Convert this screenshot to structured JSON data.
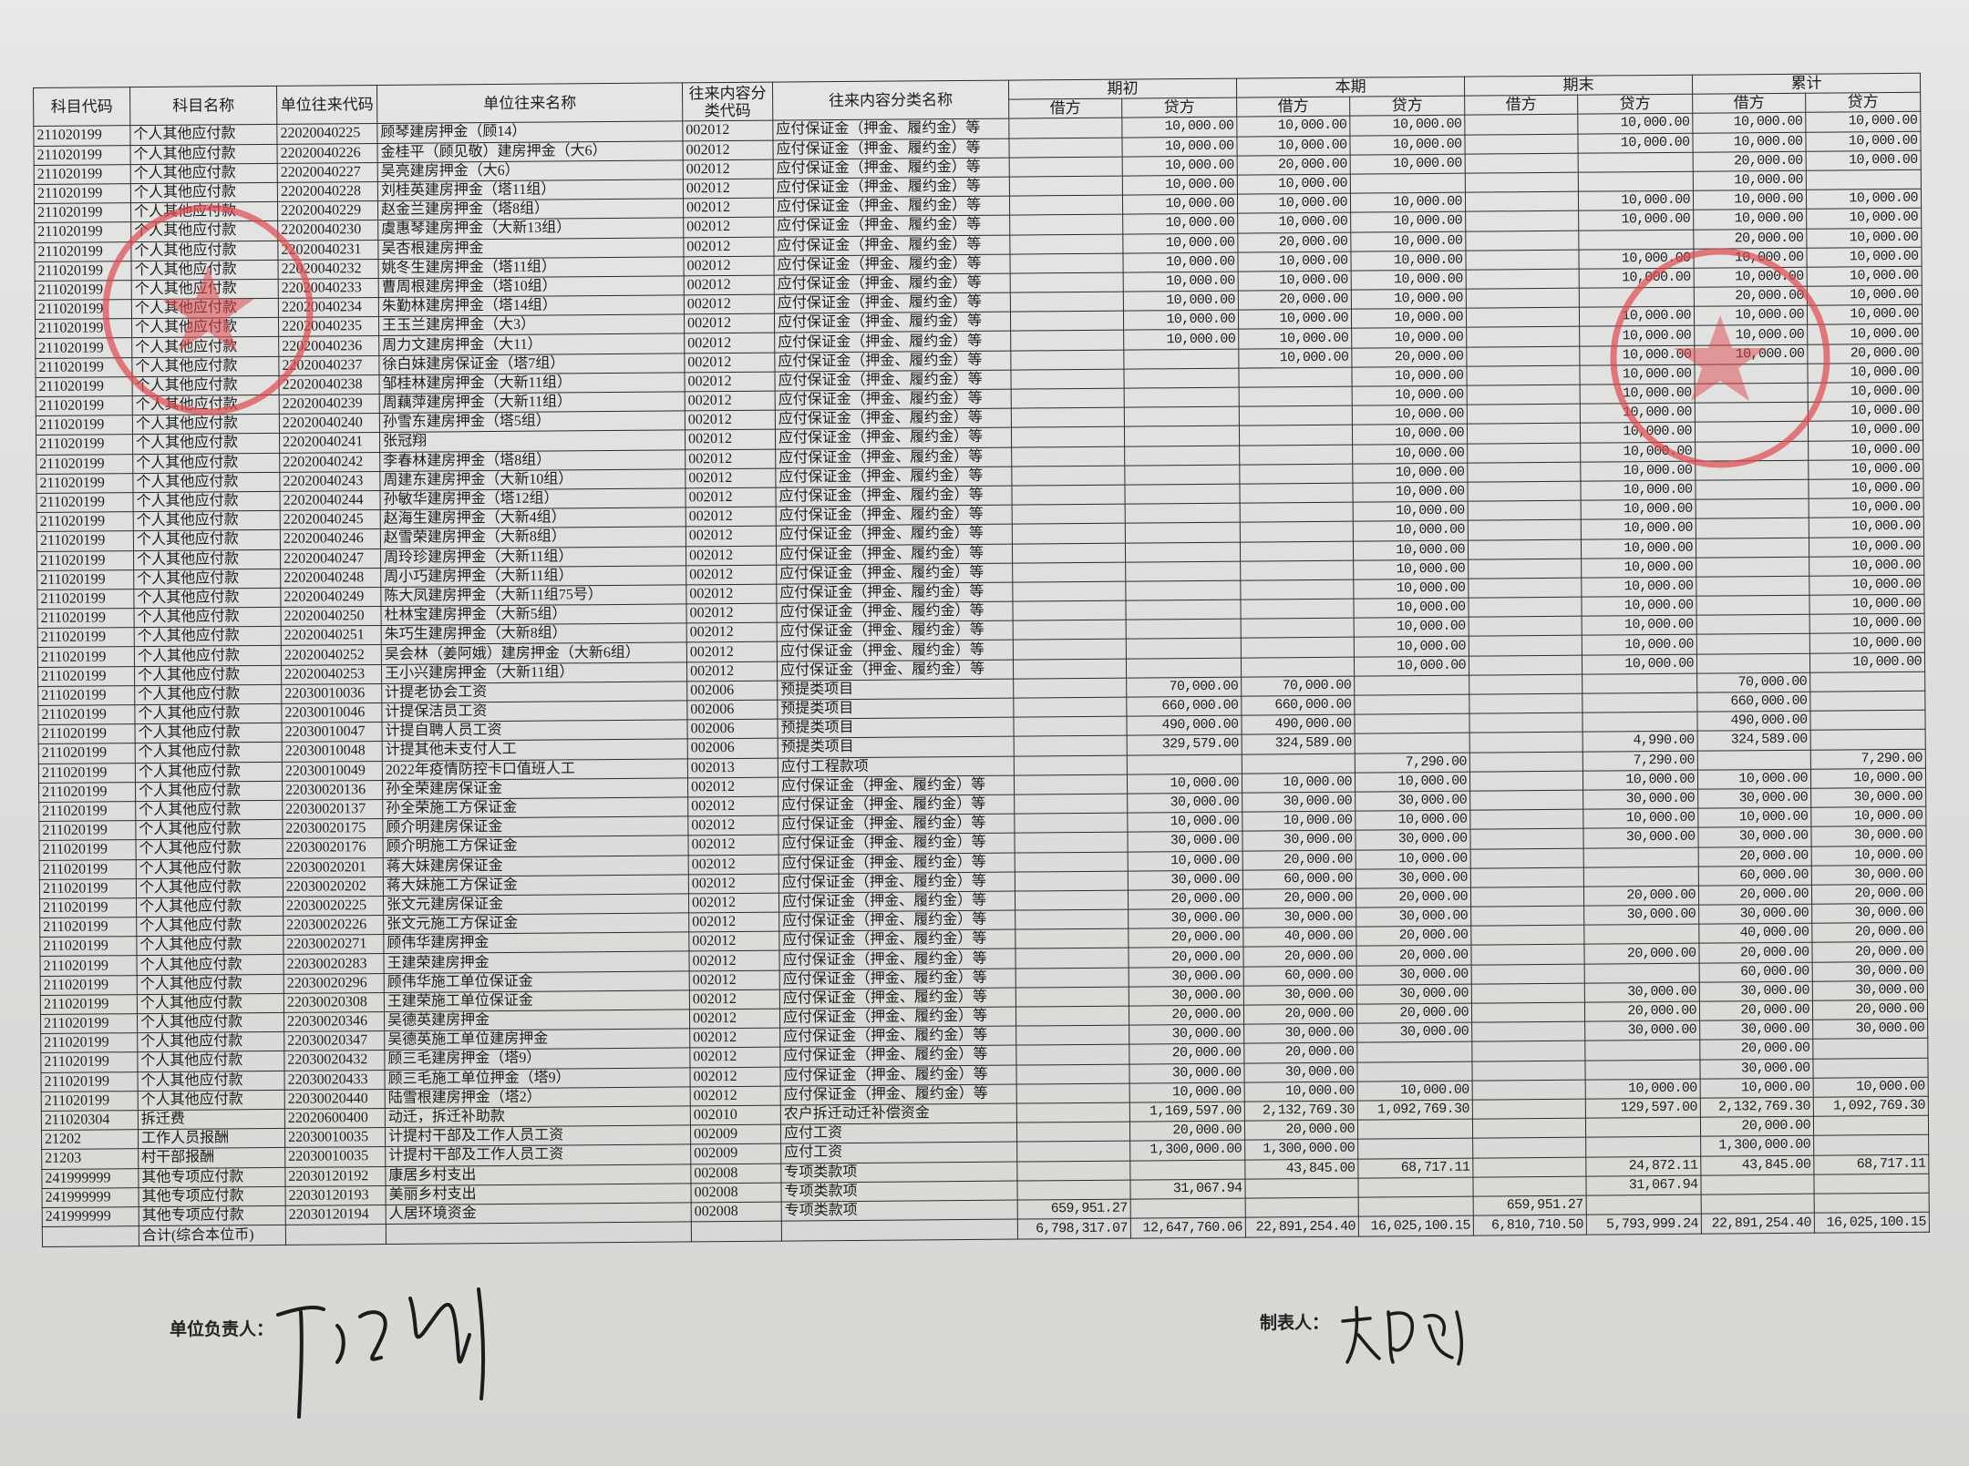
{
  "table": {
    "headers": {
      "subject_code": "科目代码",
      "subject_name": "科目名称",
      "unit_code": "单位往来代码",
      "unit_name": "单位往来名称",
      "category_code": "往来内容分类代码",
      "category_name": "往来内容分类名称",
      "groups": [
        "期初",
        "本期",
        "期末",
        "累计"
      ],
      "debit": "借方",
      "credit": "贷方"
    },
    "rows": [
      [
        "211020199",
        "个人其他应付款",
        "22020040225",
        "顾琴建房押金（顾14）",
        "002012",
        "应付保证金（押金、履约金）等",
        "",
        "10,000.00",
        "10,000.00",
        "10,000.00",
        "",
        "10,000.00",
        "10,000.00",
        "10,000.00"
      ],
      [
        "211020199",
        "个人其他应付款",
        "22020040226",
        "金桂平（顾见敬）建房押金（大6）",
        "002012",
        "应付保证金（押金、履约金）等",
        "",
        "10,000.00",
        "10,000.00",
        "10,000.00",
        "",
        "10,000.00",
        "10,000.00",
        "10,000.00"
      ],
      [
        "211020199",
        "个人其他应付款",
        "22020040227",
        "吴亮建房押金（大6）",
        "002012",
        "应付保证金（押金、履约金）等",
        "",
        "10,000.00",
        "20,000.00",
        "10,000.00",
        "",
        "",
        "20,000.00",
        "10,000.00"
      ],
      [
        "211020199",
        "个人其他应付款",
        "22020040228",
        "刘桂英建房押金（塔11组）",
        "002012",
        "应付保证金（押金、履约金）等",
        "",
        "10,000.00",
        "10,000.00",
        "",
        "",
        "",
        "10,000.00",
        ""
      ],
      [
        "211020199",
        "个人其他应付款",
        "22020040229",
        "赵金兰建房押金（塔8组）",
        "002012",
        "应付保证金（押金、履约金）等",
        "",
        "10,000.00",
        "10,000.00",
        "10,000.00",
        "",
        "10,000.00",
        "10,000.00",
        "10,000.00"
      ],
      [
        "211020199",
        "个人其他应付款",
        "22020040230",
        "虞惠琴建房押金（大新13组）",
        "002012",
        "应付保证金（押金、履约金）等",
        "",
        "10,000.00",
        "10,000.00",
        "10,000.00",
        "",
        "10,000.00",
        "10,000.00",
        "10,000.00"
      ],
      [
        "211020199",
        "个人其他应付款",
        "22020040231",
        "吴杏根建房押金",
        "002012",
        "应付保证金（押金、履约金）等",
        "",
        "10,000.00",
        "20,000.00",
        "10,000.00",
        "",
        "",
        "20,000.00",
        "10,000.00"
      ],
      [
        "211020199",
        "个人其他应付款",
        "22020040232",
        "姚冬生建房押金（塔11组）",
        "002012",
        "应付保证金（押金、履约金）等",
        "",
        "10,000.00",
        "10,000.00",
        "10,000.00",
        "",
        "10,000.00",
        "10,000.00",
        "10,000.00"
      ],
      [
        "211020199",
        "个人其他应付款",
        "22020040233",
        "曹周根建房押金（塔10组）",
        "002012",
        "应付保证金（押金、履约金）等",
        "",
        "10,000.00",
        "10,000.00",
        "10,000.00",
        "",
        "10,000.00",
        "10,000.00",
        "10,000.00"
      ],
      [
        "211020199",
        "个人其他应付款",
        "22020040234",
        "朱勤林建房押金（塔14组）",
        "002012",
        "应付保证金（押金、履约金）等",
        "",
        "10,000.00",
        "20,000.00",
        "10,000.00",
        "",
        "",
        "20,000.00",
        "10,000.00"
      ],
      [
        "211020199",
        "个人其他应付款",
        "22020040235",
        "王玉兰建房押金（大3）",
        "002012",
        "应付保证金（押金、履约金）等",
        "",
        "10,000.00",
        "10,000.00",
        "10,000.00",
        "",
        "10,000.00",
        "10,000.00",
        "10,000.00"
      ],
      [
        "211020199",
        "个人其他应付款",
        "22020040236",
        "周力文建房押金（大11）",
        "002012",
        "应付保证金（押金、履约金）等",
        "",
        "10,000.00",
        "10,000.00",
        "10,000.00",
        "",
        "10,000.00",
        "10,000.00",
        "10,000.00"
      ],
      [
        "211020199",
        "个人其他应付款",
        "22020040237",
        "徐白妹建房保证金（塔7组）",
        "002012",
        "应付保证金（押金、履约金）等",
        "",
        "",
        "10,000.00",
        "20,000.00",
        "",
        "10,000.00",
        "10,000.00",
        "20,000.00"
      ],
      [
        "211020199",
        "个人其他应付款",
        "22020040238",
        "邹桂林建房押金（大新11组）",
        "002012",
        "应付保证金（押金、履约金）等",
        "",
        "",
        "",
        "10,000.00",
        "",
        "10,000.00",
        "",
        "10,000.00"
      ],
      [
        "211020199",
        "个人其他应付款",
        "22020040239",
        "周藕萍建房押金（大新11组）",
        "002012",
        "应付保证金（押金、履约金）等",
        "",
        "",
        "",
        "10,000.00",
        "",
        "10,000.00",
        "",
        "10,000.00"
      ],
      [
        "211020199",
        "个人其他应付款",
        "22020040240",
        "孙雪东建房押金（塔5组）",
        "002012",
        "应付保证金（押金、履约金）等",
        "",
        "",
        "",
        "10,000.00",
        "",
        "10,000.00",
        "",
        "10,000.00"
      ],
      [
        "211020199",
        "个人其他应付款",
        "22020040241",
        "张冠翔",
        "002012",
        "应付保证金（押金、履约金）等",
        "",
        "",
        "",
        "10,000.00",
        "",
        "10,000.00",
        "",
        "10,000.00"
      ],
      [
        "211020199",
        "个人其他应付款",
        "22020040242",
        "李春林建房押金（塔8组）",
        "002012",
        "应付保证金（押金、履约金）等",
        "",
        "",
        "",
        "10,000.00",
        "",
        "10,000.00",
        "",
        "10,000.00"
      ],
      [
        "211020199",
        "个人其他应付款",
        "22020040243",
        "周建东建房押金（大新10组）",
        "002012",
        "应付保证金（押金、履约金）等",
        "",
        "",
        "",
        "10,000.00",
        "",
        "10,000.00",
        "",
        "10,000.00"
      ],
      [
        "211020199",
        "个人其他应付款",
        "22020040244",
        "孙敏华建房押金（塔12组）",
        "002012",
        "应付保证金（押金、履约金）等",
        "",
        "",
        "",
        "10,000.00",
        "",
        "10,000.00",
        "",
        "10,000.00"
      ],
      [
        "211020199",
        "个人其他应付款",
        "22020040245",
        "赵海生建房押金（大新4组）",
        "002012",
        "应付保证金（押金、履约金）等",
        "",
        "",
        "",
        "10,000.00",
        "",
        "10,000.00",
        "",
        "10,000.00"
      ],
      [
        "211020199",
        "个人其他应付款",
        "22020040246",
        "赵雪荣建房押金（大新8组）",
        "002012",
        "应付保证金（押金、履约金）等",
        "",
        "",
        "",
        "10,000.00",
        "",
        "10,000.00",
        "",
        "10,000.00"
      ],
      [
        "211020199",
        "个人其他应付款",
        "22020040247",
        "周玲珍建房押金（大新11组）",
        "002012",
        "应付保证金（押金、履约金）等",
        "",
        "",
        "",
        "10,000.00",
        "",
        "10,000.00",
        "",
        "10,000.00"
      ],
      [
        "211020199",
        "个人其他应付款",
        "22020040248",
        "周小巧建房押金（大新11组）",
        "002012",
        "应付保证金（押金、履约金）等",
        "",
        "",
        "",
        "10,000.00",
        "",
        "10,000.00",
        "",
        "10,000.00"
      ],
      [
        "211020199",
        "个人其他应付款",
        "22020040249",
        "陈大凤建房押金（大新11组75号）",
        "002012",
        "应付保证金（押金、履约金）等",
        "",
        "",
        "",
        "10,000.00",
        "",
        "10,000.00",
        "",
        "10,000.00"
      ],
      [
        "211020199",
        "个人其他应付款",
        "22020040250",
        "杜林宝建房押金（大新5组）",
        "002012",
        "应付保证金（押金、履约金）等",
        "",
        "",
        "",
        "10,000.00",
        "",
        "10,000.00",
        "",
        "10,000.00"
      ],
      [
        "211020199",
        "个人其他应付款",
        "22020040251",
        "朱巧生建房押金（大新8组）",
        "002012",
        "应付保证金（押金、履约金）等",
        "",
        "",
        "",
        "10,000.00",
        "",
        "10,000.00",
        "",
        "10,000.00"
      ],
      [
        "211020199",
        "个人其他应付款",
        "22020040252",
        "吴会林（姜阿娥）建房押金（大新6组）",
        "002012",
        "应付保证金（押金、履约金）等",
        "",
        "",
        "",
        "10,000.00",
        "",
        "10,000.00",
        "",
        "10,000.00"
      ],
      [
        "211020199",
        "个人其他应付款",
        "22020040253",
        "王小兴建房押金（大新11组）",
        "002012",
        "应付保证金（押金、履约金）等",
        "",
        "",
        "",
        "10,000.00",
        "",
        "10,000.00",
        "",
        "10,000.00"
      ],
      [
        "211020199",
        "个人其他应付款",
        "22030010036",
        "计提老协会工资",
        "002006",
        "预提类项目",
        "",
        "70,000.00",
        "70,000.00",
        "",
        "",
        "",
        "70,000.00",
        ""
      ],
      [
        "211020199",
        "个人其他应付款",
        "22030010046",
        "计提保洁员工资",
        "002006",
        "预提类项目",
        "",
        "660,000.00",
        "660,000.00",
        "",
        "",
        "",
        "660,000.00",
        ""
      ],
      [
        "211020199",
        "个人其他应付款",
        "22030010047",
        "计提自聘人员工资",
        "002006",
        "预提类项目",
        "",
        "490,000.00",
        "490,000.00",
        "",
        "",
        "",
        "490,000.00",
        ""
      ],
      [
        "211020199",
        "个人其他应付款",
        "22030010048",
        "计提其他未支付人工",
        "002006",
        "预提类项目",
        "",
        "329,579.00",
        "324,589.00",
        "",
        "",
        "4,990.00",
        "324,589.00",
        ""
      ],
      [
        "211020199",
        "个人其他应付款",
        "22030010049",
        "2022年疫情防控卡口值班人工",
        "002013",
        "应付工程款项",
        "",
        "",
        "",
        "7,290.00",
        "",
        "7,290.00",
        "",
        "7,290.00"
      ],
      [
        "211020199",
        "个人其他应付款",
        "22030020136",
        "孙全荣建房保证金",
        "002012",
        "应付保证金（押金、履约金）等",
        "",
        "10,000.00",
        "10,000.00",
        "10,000.00",
        "",
        "10,000.00",
        "10,000.00",
        "10,000.00"
      ],
      [
        "211020199",
        "个人其他应付款",
        "22030020137",
        "孙全荣施工方保证金",
        "002012",
        "应付保证金（押金、履约金）等",
        "",
        "30,000.00",
        "30,000.00",
        "30,000.00",
        "",
        "30,000.00",
        "30,000.00",
        "30,000.00"
      ],
      [
        "211020199",
        "个人其他应付款",
        "22030020175",
        "顾介明建房保证金",
        "002012",
        "应付保证金（押金、履约金）等",
        "",
        "10,000.00",
        "10,000.00",
        "10,000.00",
        "",
        "10,000.00",
        "10,000.00",
        "10,000.00"
      ],
      [
        "211020199",
        "个人其他应付款",
        "22030020176",
        "顾介明施工方保证金",
        "002012",
        "应付保证金（押金、履约金）等",
        "",
        "30,000.00",
        "30,000.00",
        "30,000.00",
        "",
        "30,000.00",
        "30,000.00",
        "30,000.00"
      ],
      [
        "211020199",
        "个人其他应付款",
        "22030020201",
        "蒋大妹建房保证金",
        "002012",
        "应付保证金（押金、履约金）等",
        "",
        "10,000.00",
        "20,000.00",
        "10,000.00",
        "",
        "",
        "20,000.00",
        "10,000.00"
      ],
      [
        "211020199",
        "个人其他应付款",
        "22030020202",
        "蒋大妹施工方保证金",
        "002012",
        "应付保证金（押金、履约金）等",
        "",
        "30,000.00",
        "60,000.00",
        "30,000.00",
        "",
        "",
        "60,000.00",
        "30,000.00"
      ],
      [
        "211020199",
        "个人其他应付款",
        "22030020225",
        "张文元建房保证金",
        "002012",
        "应付保证金（押金、履约金）等",
        "",
        "20,000.00",
        "20,000.00",
        "20,000.00",
        "",
        "20,000.00",
        "20,000.00",
        "20,000.00"
      ],
      [
        "211020199",
        "个人其他应付款",
        "22030020226",
        "张文元施工方保证金",
        "002012",
        "应付保证金（押金、履约金）等",
        "",
        "30,000.00",
        "30,000.00",
        "30,000.00",
        "",
        "30,000.00",
        "30,000.00",
        "30,000.00"
      ],
      [
        "211020199",
        "个人其他应付款",
        "22030020271",
        "顾伟华建房押金",
        "002012",
        "应付保证金（押金、履约金）等",
        "",
        "20,000.00",
        "40,000.00",
        "20,000.00",
        "",
        "",
        "40,000.00",
        "20,000.00"
      ],
      [
        "211020199",
        "个人其他应付款",
        "22030020283",
        "王建荣建房押金",
        "002012",
        "应付保证金（押金、履约金）等",
        "",
        "20,000.00",
        "20,000.00",
        "20,000.00",
        "",
        "20,000.00",
        "20,000.00",
        "20,000.00"
      ],
      [
        "211020199",
        "个人其他应付款",
        "22030020296",
        "顾伟华施工单位保证金",
        "002012",
        "应付保证金（押金、履约金）等",
        "",
        "30,000.00",
        "60,000.00",
        "30,000.00",
        "",
        "",
        "60,000.00",
        "30,000.00"
      ],
      [
        "211020199",
        "个人其他应付款",
        "22030020308",
        "王建荣施工单位保证金",
        "002012",
        "应付保证金（押金、履约金）等",
        "",
        "30,000.00",
        "30,000.00",
        "30,000.00",
        "",
        "30,000.00",
        "30,000.00",
        "30,000.00"
      ],
      [
        "211020199",
        "个人其他应付款",
        "22030020346",
        "吴德英建房押金",
        "002012",
        "应付保证金（押金、履约金）等",
        "",
        "20,000.00",
        "20,000.00",
        "20,000.00",
        "",
        "20,000.00",
        "20,000.00",
        "20,000.00"
      ],
      [
        "211020199",
        "个人其他应付款",
        "22030020347",
        "吴德英施工单位建房押金",
        "002012",
        "应付保证金（押金、履约金）等",
        "",
        "30,000.00",
        "30,000.00",
        "30,000.00",
        "",
        "30,000.00",
        "30,000.00",
        "30,000.00"
      ],
      [
        "211020199",
        "个人其他应付款",
        "22030020432",
        "顾三毛建房押金（塔9）",
        "002012",
        "应付保证金（押金、履约金）等",
        "",
        "20,000.00",
        "20,000.00",
        "",
        "",
        "",
        "20,000.00",
        ""
      ],
      [
        "211020199",
        "个人其他应付款",
        "22030020433",
        "顾三毛施工单位押金（塔9）",
        "002012",
        "应付保证金（押金、履约金）等",
        "",
        "30,000.00",
        "30,000.00",
        "",
        "",
        "",
        "30,000.00",
        ""
      ],
      [
        "211020199",
        "个人其他应付款",
        "22030020440",
        "陆雪根建房押金（塔2）",
        "002012",
        "应付保证金（押金、履约金）等",
        "",
        "10,000.00",
        "10,000.00",
        "10,000.00",
        "",
        "10,000.00",
        "10,000.00",
        "10,000.00"
      ],
      [
        "211020304",
        "拆迁费",
        "22020600400",
        "动迁，拆迁补助款",
        "002010",
        "农户拆迁动迁补偿资金",
        "",
        "1,169,597.00",
        "2,132,769.30",
        "1,092,769.30",
        "",
        "129,597.00",
        "2,132,769.30",
        "1,092,769.30"
      ],
      [
        "21202",
        "工作人员报酬",
        "22030010035",
        "计提村干部及工作人员工资",
        "002009",
        "应付工资",
        "",
        "20,000.00",
        "20,000.00",
        "",
        "",
        "",
        "20,000.00",
        ""
      ],
      [
        "21203",
        "村干部报酬",
        "22030010035",
        "计提村干部及工作人员工资",
        "002009",
        "应付工资",
        "",
        "1,300,000.00",
        "1,300,000.00",
        "",
        "",
        "",
        "1,300,000.00",
        ""
      ],
      [
        "241999999",
        "其他专项应付款",
        "22030120192",
        "康居乡村支出",
        "002008",
        "专项类款项",
        "",
        "",
        "43,845.00",
        "68,717.11",
        "",
        "24,872.11",
        "43,845.00",
        "68,717.11"
      ],
      [
        "241999999",
        "其他专项应付款",
        "22030120193",
        "美丽乡村支出",
        "002008",
        "专项类款项",
        "",
        "31,067.94",
        "",
        "",
        "",
        "31,067.94",
        "",
        ""
      ],
      [
        "241999999",
        "其他专项应付款",
        "22030120194",
        "人居环境资金",
        "002008",
        "专项类款项",
        "659,951.27",
        "",
        "",
        "",
        "659,951.27",
        "",
        "",
        ""
      ]
    ],
    "total": {
      "label": "合计(综合本位币)",
      "amounts": [
        "6,798,317.07",
        "12,647,760.06",
        "22,891,254.40",
        "16,025,100.15",
        "6,810,710.50",
        "5,793,999.24",
        "22,891,254.40",
        "16,025,100.15"
      ]
    }
  },
  "footer": {
    "unit_head_label": "单位负责人：",
    "preparer_label": "制表人："
  },
  "colors": {
    "stamp": "#e0484e",
    "ink": "#1d1d1d"
  }
}
